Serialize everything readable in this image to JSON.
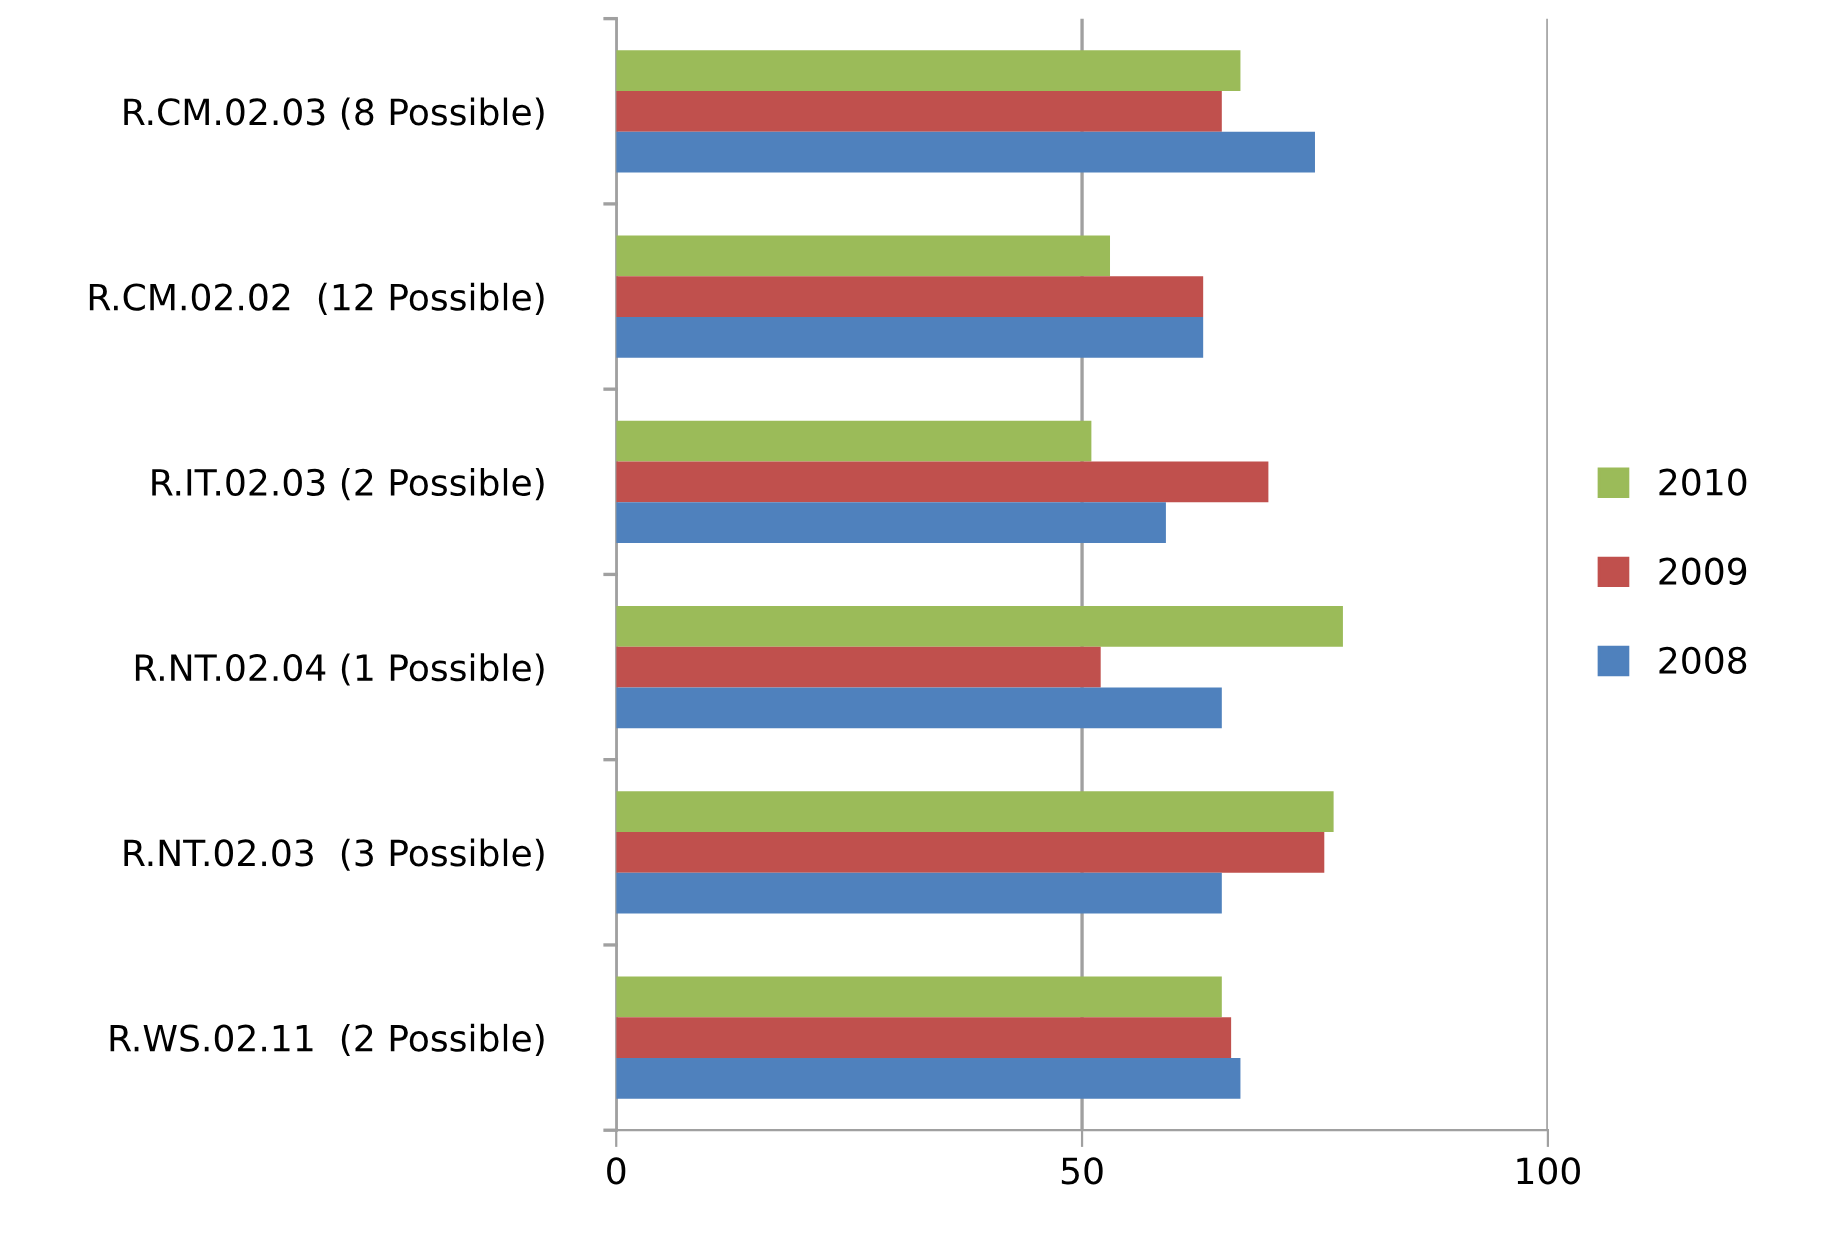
{
  "chart_data": {
    "type": "bar",
    "orientation": "horizontal",
    "categories": [
      "R.CM.02.03 (8 Possible)",
      "R.CM.02.02  (12 Possible)",
      "R.IT.02.03 (2 Possible)",
      "R.NT.02.04 (1 Possible)",
      "R.NT.02.03  (3 Possible)",
      "R.WS.02.11  (2 Possible)"
    ],
    "series": [
      {
        "name": "2010",
        "color": "#9bbb59",
        "values": [
          67,
          53,
          51,
          78,
          77,
          65
        ]
      },
      {
        "name": "2009",
        "color": "#c0504d",
        "values": [
          65,
          63,
          70,
          52,
          76,
          66
        ]
      },
      {
        "name": "2008",
        "color": "#4f81bd",
        "values": [
          75,
          63,
          59,
          65,
          65,
          67
        ]
      }
    ],
    "xlim": [
      0,
      100
    ],
    "xticks": [
      0,
      50,
      100
    ],
    "grid": "x",
    "legend": "right"
  }
}
